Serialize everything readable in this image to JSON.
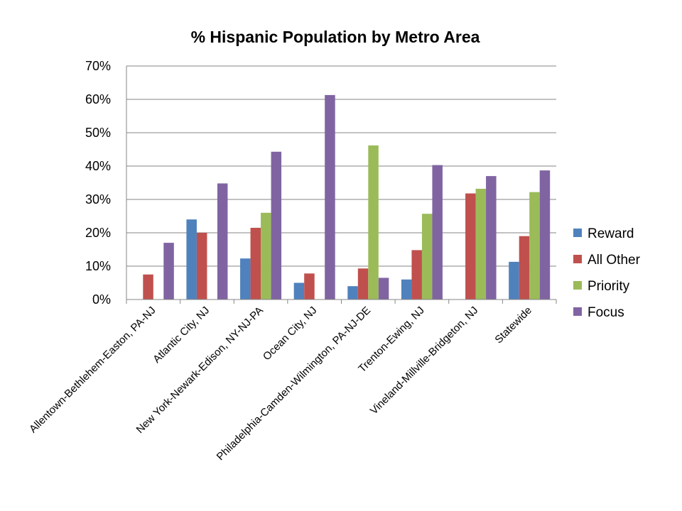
{
  "chart_data": {
    "type": "bar",
    "title": "% Hispanic Population by Metro Area",
    "xlabel": "",
    "ylabel": "",
    "ylim": [
      0,
      0.7
    ],
    "y_ticks": [
      "0%",
      "10%",
      "20%",
      "30%",
      "40%",
      "50%",
      "60%",
      "70%"
    ],
    "grid": true,
    "legend_position": "right",
    "categories": [
      "Allentown-Bethlehem-Easton, PA-NJ",
      "Atlantic City, NJ",
      "New York-Newark-Edison, NY-NJ-PA",
      "Ocean City, NJ",
      "Philadelphia-Camden-Wilmington, PA-NJ-DE",
      "Trenton-Ewing, NJ",
      "Vineland-Millville-Bridgeton, NJ",
      "Statewide"
    ],
    "series": [
      {
        "name": "Reward",
        "color": "#4F81BD",
        "values": [
          null,
          0.24,
          0.123,
          0.05,
          0.04,
          0.06,
          null,
          0.113
        ]
      },
      {
        "name": "All Other",
        "color": "#C0504D",
        "values": [
          0.075,
          0.2,
          0.215,
          0.078,
          0.093,
          0.148,
          0.318,
          0.19
        ]
      },
      {
        "name": "Priority",
        "color": "#9BBB59",
        "values": [
          null,
          null,
          0.26,
          null,
          0.462,
          0.257,
          0.332,
          0.322
        ]
      },
      {
        "name": "Focus",
        "color": "#8064A2",
        "values": [
          0.17,
          0.348,
          0.443,
          0.613,
          0.065,
          0.403,
          0.37,
          0.387
        ]
      }
    ]
  }
}
